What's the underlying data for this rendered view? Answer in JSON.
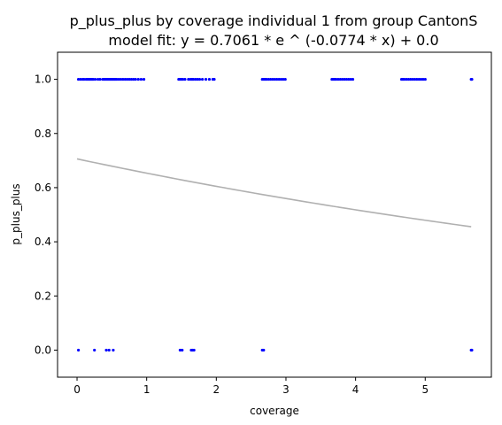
{
  "chart_data": {
    "type": "scatter",
    "title": "p_plus_plus by coverage individual 1 from group CantonS",
    "subtitle": "model fit: y = 0.7061 * e ^ (-0.0774 * x) + 0.0",
    "xlabel": "coverage",
    "ylabel": "p_plus_plus",
    "xlim": [
      -0.28,
      5.95
    ],
    "ylim": [
      -0.1,
      1.1
    ],
    "xticks": [
      0,
      1,
      2,
      3,
      4,
      5
    ],
    "xtick_labels": [
      "0",
      "1",
      "2",
      "3",
      "4",
      "5"
    ],
    "yticks": [
      0.0,
      0.2,
      0.4,
      0.6,
      0.8,
      1.0
    ],
    "ytick_labels": [
      "0.0",
      "0.2",
      "0.4",
      "0.6",
      "0.8",
      "1.0"
    ],
    "grid": false,
    "point_color": "#0000ff",
    "fit_color": "#b0b0b0",
    "fit": {
      "a": 0.7061,
      "b": -0.0774,
      "c": 0.0,
      "x_range": [
        0,
        5.66
      ]
    },
    "series": [
      {
        "values": [
          [
            0.02,
            1
          ],
          [
            0.05,
            1
          ],
          [
            0.08,
            1
          ],
          [
            0.1,
            1
          ],
          [
            0.13,
            1
          ],
          [
            0.15,
            1
          ],
          [
            0.17,
            1
          ],
          [
            0.19,
            1
          ],
          [
            0.21,
            1
          ],
          [
            0.23,
            1
          ],
          [
            0.26,
            1
          ],
          [
            0.3,
            1
          ],
          [
            0.33,
            1
          ],
          [
            0.37,
            1
          ],
          [
            0.39,
            1
          ],
          [
            0.41,
            1
          ],
          [
            0.43,
            1
          ],
          [
            0.45,
            1
          ],
          [
            0.47,
            1
          ],
          [
            0.49,
            1
          ],
          [
            0.51,
            1
          ],
          [
            0.53,
            1
          ],
          [
            0.55,
            1
          ],
          [
            0.57,
            1
          ],
          [
            0.6,
            1
          ],
          [
            0.63,
            1
          ],
          [
            0.66,
            1
          ],
          [
            0.69,
            1
          ],
          [
            0.72,
            1
          ],
          [
            0.75,
            1
          ],
          [
            0.78,
            1
          ],
          [
            0.81,
            1
          ],
          [
            0.84,
            1
          ],
          [
            0.88,
            1
          ],
          [
            0.92,
            1
          ],
          [
            0.96,
            1
          ],
          [
            1.46,
            1
          ],
          [
            1.48,
            1
          ],
          [
            1.5,
            1
          ],
          [
            1.52,
            1
          ],
          [
            1.55,
            1
          ],
          [
            1.6,
            1
          ],
          [
            1.63,
            1
          ],
          [
            1.65,
            1
          ],
          [
            1.67,
            1
          ],
          [
            1.7,
            1
          ],
          [
            1.73,
            1
          ],
          [
            1.76,
            1
          ],
          [
            1.8,
            1
          ],
          [
            1.85,
            1
          ],
          [
            1.9,
            1
          ],
          [
            1.95,
            1
          ],
          [
            1.97,
            1
          ],
          [
            2.66,
            1
          ],
          [
            2.68,
            1
          ],
          [
            2.7,
            1
          ],
          [
            2.72,
            1
          ],
          [
            2.75,
            1
          ],
          [
            2.78,
            1
          ],
          [
            2.81,
            1
          ],
          [
            2.84,
            1
          ],
          [
            2.87,
            1
          ],
          [
            2.9,
            1
          ],
          [
            2.93,
            1
          ],
          [
            2.96,
            1
          ],
          [
            2.99,
            1
          ],
          [
            3.66,
            1
          ],
          [
            3.68,
            1
          ],
          [
            3.7,
            1
          ],
          [
            3.72,
            1
          ],
          [
            3.75,
            1
          ],
          [
            3.78,
            1
          ],
          [
            3.81,
            1
          ],
          [
            3.84,
            1
          ],
          [
            3.87,
            1
          ],
          [
            3.9,
            1
          ],
          [
            3.93,
            1
          ],
          [
            3.96,
            1
          ],
          [
            4.66,
            1
          ],
          [
            4.68,
            1
          ],
          [
            4.7,
            1
          ],
          [
            4.73,
            1
          ],
          [
            4.76,
            1
          ],
          [
            4.79,
            1
          ],
          [
            4.82,
            1
          ],
          [
            4.85,
            1
          ],
          [
            4.88,
            1
          ],
          [
            4.91,
            1
          ],
          [
            4.94,
            1
          ],
          [
            4.97,
            1
          ],
          [
            5.0,
            1
          ],
          [
            5.66,
            1
          ],
          [
            5.67,
            1
          ],
          [
            0.02,
            0
          ],
          [
            0.25,
            0
          ],
          [
            0.42,
            0
          ],
          [
            0.46,
            0
          ],
          [
            0.52,
            0
          ],
          [
            1.48,
            0
          ],
          [
            1.51,
            0
          ],
          [
            1.64,
            0
          ],
          [
            1.66,
            0
          ],
          [
            1.68,
            0
          ],
          [
            2.66,
            0
          ],
          [
            2.68,
            0
          ],
          [
            5.66,
            0
          ],
          [
            5.67,
            0
          ]
        ]
      }
    ]
  }
}
